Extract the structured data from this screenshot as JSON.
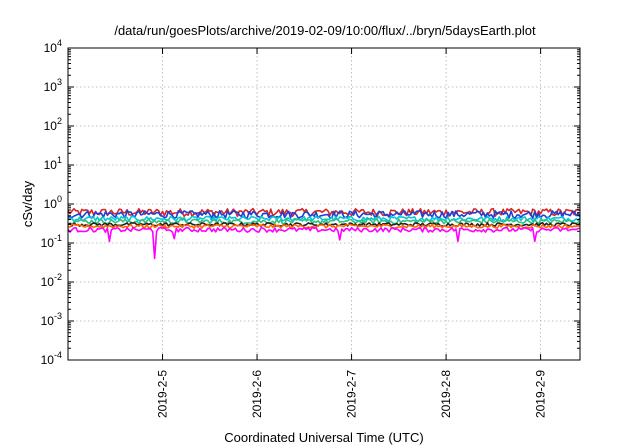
{
  "chart_data": {
    "type": "line",
    "title": "/data/run/goesPlots/archive/2019-02-09/10:00/flux/../bryn/5daysEarth.plot",
    "xlabel": "Coordinated Universal Time (UTC)",
    "ylabel": "cSv/day",
    "y_scale": "log",
    "ylim": [
      0.0001,
      10000
    ],
    "y_ticks": [
      {
        "value": 0.0001,
        "base": "10",
        "exp": "-4"
      },
      {
        "value": 0.001,
        "base": "10",
        "exp": "-3"
      },
      {
        "value": 0.01,
        "base": "10",
        "exp": "-2"
      },
      {
        "value": 0.1,
        "base": "10",
        "exp": "-1"
      },
      {
        "value": 1,
        "base": "10",
        "exp": "0"
      },
      {
        "value": 10,
        "base": "10",
        "exp": "1"
      },
      {
        "value": 100,
        "base": "10",
        "exp": "2"
      },
      {
        "value": 1000,
        "base": "10",
        "exp": "3"
      },
      {
        "value": 10000,
        "base": "10",
        "exp": "4"
      }
    ],
    "xlim": [
      "2019-02-04T00:00",
      "2019-02-09T10:00"
    ],
    "x_ticks": [
      {
        "value": "2019-02-05T00:00",
        "label": "2019-2-5"
      },
      {
        "value": "2019-02-06T00:00",
        "label": "2019-2-6"
      },
      {
        "value": "2019-02-07T00:00",
        "label": "2019-2-7"
      },
      {
        "value": "2019-02-08T00:00",
        "label": "2019-2-8"
      },
      {
        "value": "2019-02-09T00:00",
        "label": "2019-2-9"
      }
    ],
    "grid": true,
    "series": [
      {
        "color": "#d62728",
        "base": 0.62,
        "jitter": 0.14,
        "dips": []
      },
      {
        "color": "#1f3fd6",
        "base": 0.55,
        "jitter": 0.12,
        "dips": []
      },
      {
        "color": "#00c8d8",
        "base": 0.42,
        "jitter": 0.06,
        "dips": []
      },
      {
        "color": "#2ec27e",
        "base": 0.36,
        "jitter": 0.05,
        "dips": []
      },
      {
        "color": "#222222",
        "base": 0.3,
        "jitter": 0.03,
        "dips": []
      },
      {
        "color": "#ff6600",
        "base": 0.27,
        "jitter": 0.03,
        "dips": []
      },
      {
        "color": "#ff00ff",
        "base": 0.22,
        "jitter": 0.03,
        "dips": [
          {
            "x": "2019-02-04T10:20",
            "value": 0.11
          },
          {
            "x": "2019-02-04T22:10",
            "value": 0.04
          },
          {
            "x": "2019-02-05T02:50",
            "value": 0.13
          },
          {
            "x": "2019-02-06T20:50",
            "value": 0.12
          },
          {
            "x": "2019-02-08T03:10",
            "value": 0.11
          },
          {
            "x": "2019-02-08T22:30",
            "value": 0.11
          }
        ]
      }
    ]
  }
}
